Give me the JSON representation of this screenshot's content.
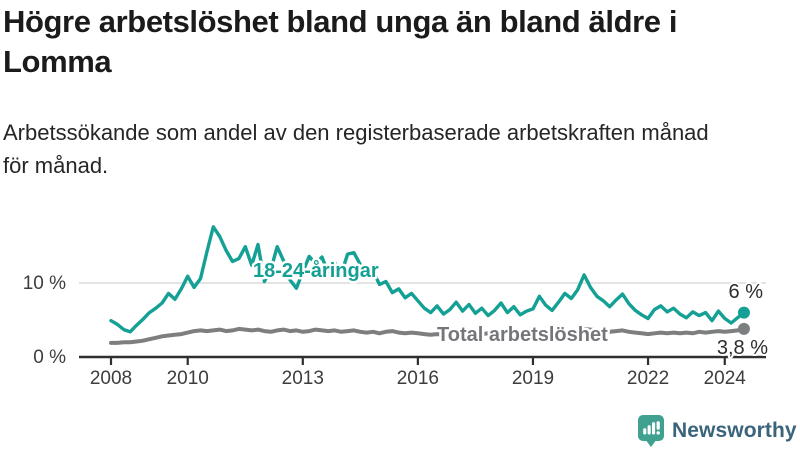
{
  "header": {
    "title_line1": "Högre arbetslöshet bland unga än bland äldre i",
    "title_line2": "Lomma",
    "subtitle_line1": "Arbetssökande som andel av den registerbaserade arbetskraften månad",
    "subtitle_line2": "för månad."
  },
  "chart_data": {
    "type": "line",
    "title": "Högre arbetslöshet bland unga än bland äldre i Lomma",
    "subtitle": "Arbetssökande som andel av den registerbaserade arbetskraften månad för månad.",
    "x_start_year": 2008,
    "x_step_years": 0.1666667,
    "x_end_year": 2024.5,
    "xlim": [
      2008,
      2024.58
    ],
    "ylim": [
      0,
      18.5
    ],
    "grid": "single-horizontal-gridline-at-10",
    "legend_position": "inline-labels-on-chart",
    "x_ticks": [
      {
        "label": "2008",
        "year": 2008
      },
      {
        "label": "2010",
        "year": 2010
      },
      {
        "label": "2013",
        "year": 2013
      },
      {
        "label": "2016",
        "year": 2016
      },
      {
        "label": "2019",
        "year": 2019
      },
      {
        "label": "2022",
        "year": 2022
      },
      {
        "label": "2024",
        "year": 2024
      }
    ],
    "y_ticks": [
      {
        "label": "0 %",
        "value": 0
      },
      {
        "label": "10 %",
        "value": 10
      }
    ],
    "axis_color": "#2f2f2f",
    "gridline_color": "#dbdbdb",
    "tick_label_color": "#3d3d3d",
    "end_label_color": "#2d2d2d",
    "series": [
      {
        "name": "Total arbetslöshet",
        "color": "#7d7e80",
        "label_color": "#75767a",
        "end_label": "3,8 %",
        "end_value": 3.8,
        "stroke_width": 4,
        "values": [
          1.9,
          1.9,
          2.0,
          2.0,
          2.1,
          2.2,
          2.4,
          2.6,
          2.8,
          2.9,
          3.0,
          3.1,
          3.3,
          3.5,
          3.6,
          3.5,
          3.6,
          3.7,
          3.5,
          3.6,
          3.8,
          3.7,
          3.6,
          3.7,
          3.5,
          3.4,
          3.6,
          3.7,
          3.5,
          3.6,
          3.4,
          3.5,
          3.7,
          3.6,
          3.5,
          3.6,
          3.4,
          3.5,
          3.6,
          3.4,
          3.3,
          3.4,
          3.2,
          3.4,
          3.5,
          3.3,
          3.2,
          3.3,
          3.2,
          3.1,
          3.0,
          3.1,
          3.0,
          3.1,
          3.2,
          3.1,
          3.2,
          3.0,
          3.1,
          3.2,
          3.0,
          3.1,
          3.2,
          3.1,
          3.0,
          3.1,
          3.2,
          3.3,
          3.2,
          3.1,
          3.2,
          3.3,
          3.4,
          3.6,
          3.8,
          3.7,
          3.6,
          3.5,
          3.4,
          3.5,
          3.6,
          3.4,
          3.3,
          3.2,
          3.1,
          3.2,
          3.3,
          3.2,
          3.3,
          3.2,
          3.3,
          3.2,
          3.4,
          3.3,
          3.4,
          3.5,
          3.4,
          3.5,
          3.6,
          3.8
        ]
      },
      {
        "name": "18-24-åringar",
        "color": "#14a094",
        "label_color": "#14a094",
        "end_label": "6 %",
        "end_value": 6,
        "stroke_width": 3.4,
        "values": [
          4.9,
          4.4,
          3.7,
          3.4,
          4.3,
          5.1,
          6.0,
          6.6,
          7.3,
          8.6,
          7.8,
          9.2,
          10.9,
          9.4,
          10.6,
          14.2,
          17.6,
          16.3,
          14.4,
          12.9,
          13.3,
          14.9,
          12.4,
          15.2,
          10.2,
          11.8,
          14.9,
          13.0,
          10.4,
          9.3,
          11.5,
          13.6,
          12.6,
          13.5,
          11.3,
          12.8,
          11.2,
          13.9,
          14.1,
          12.5,
          10.9,
          11.6,
          9.8,
          10.2,
          8.7,
          9.2,
          8.0,
          8.6,
          7.6,
          6.6,
          6.0,
          6.9,
          5.8,
          6.4,
          7.4,
          6.2,
          7.1,
          5.9,
          6.6,
          5.6,
          6.3,
          7.3,
          6.0,
          6.8,
          5.7,
          6.2,
          6.5,
          8.2,
          7.0,
          6.3,
          7.4,
          8.6,
          7.9,
          9.1,
          11.1,
          9.4,
          8.2,
          7.6,
          6.8,
          7.7,
          8.5,
          7.2,
          6.3,
          5.7,
          5.2,
          6.4,
          6.9,
          6.1,
          6.6,
          5.8,
          5.3,
          6.1,
          5.6,
          6.0,
          4.9,
          6.2,
          5.2,
          4.6,
          5.3,
          6.0
        ]
      }
    ]
  },
  "logo": {
    "text": "Newsworthy",
    "icon": "newsworthy-bar-chart-bubble-icon",
    "icon_color": "#40a191",
    "icon_glyph_color": "#ffffff",
    "text_color": "#3a647c"
  }
}
